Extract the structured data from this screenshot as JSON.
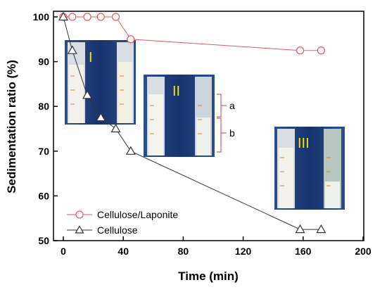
{
  "chart_data": {
    "type": "line",
    "xlabel": "Time (min)",
    "ylabel": "Sedimentation ratio (%)",
    "xlim": [
      0,
      200
    ],
    "ylim": [
      50,
      100
    ],
    "xticks": [
      "0",
      "40",
      "80",
      "120",
      "160",
      "200"
    ],
    "yticks": [
      "50",
      "60",
      "70",
      "80",
      "90",
      "100"
    ],
    "grid": false,
    "legend_position": "bottom-left",
    "series": [
      {
        "name": "Cellulose/Laponite",
        "color": "#e05a5a",
        "marker": "circle",
        "x": [
          0,
          6,
          16,
          25,
          35,
          45,
          158,
          172
        ],
        "y": [
          100,
          100,
          100,
          100,
          100,
          95,
          92.5,
          92.5
        ]
      },
      {
        "name": "Cellulose",
        "color": "#333333",
        "marker": "triangle",
        "x": [
          0,
          6,
          16,
          25,
          35,
          45,
          158,
          172
        ],
        "y": [
          100,
          92.5,
          82.5,
          77.5,
          75,
          70,
          52.5,
          52.5
        ]
      }
    ],
    "annotations": {
      "panels": [
        "I",
        "II",
        "III"
      ],
      "brackets": [
        "a",
        "b"
      ]
    }
  }
}
